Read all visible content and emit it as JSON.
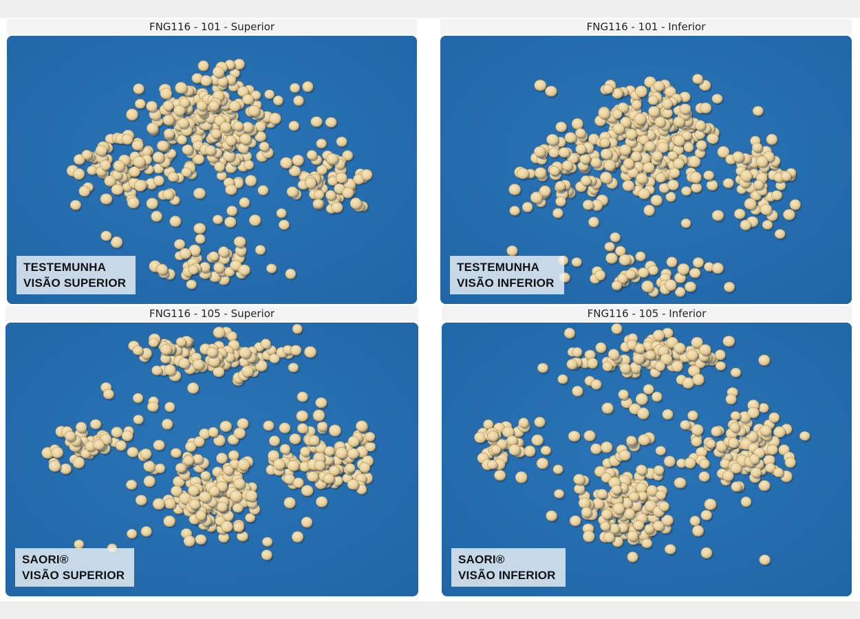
{
  "panels": [
    {
      "title": "FNG116 - 101 - Superior",
      "caption_line1": "TESTEMUNHA",
      "caption_line2": "VISÃO SUPERIOR"
    },
    {
      "title": "FNG116 - 101 - Inferior",
      "caption_line1": "TESTEMUNHA",
      "caption_line2": "VISÃO INFERIOR"
    },
    {
      "title": "FNG116 - 105 - Superior",
      "caption_line1": "SAORI®",
      "caption_line2": "VISÃO SUPERIOR"
    },
    {
      "title": "FNG116 - 105 - Inferior",
      "caption_line1": "SAORI®",
      "caption_line2": "VISÃO INFERIOR"
    }
  ],
  "colors": {
    "background_blue": "#1f66a6",
    "seed": "#e6cf9c",
    "seed_shadow": "#163f6d"
  }
}
